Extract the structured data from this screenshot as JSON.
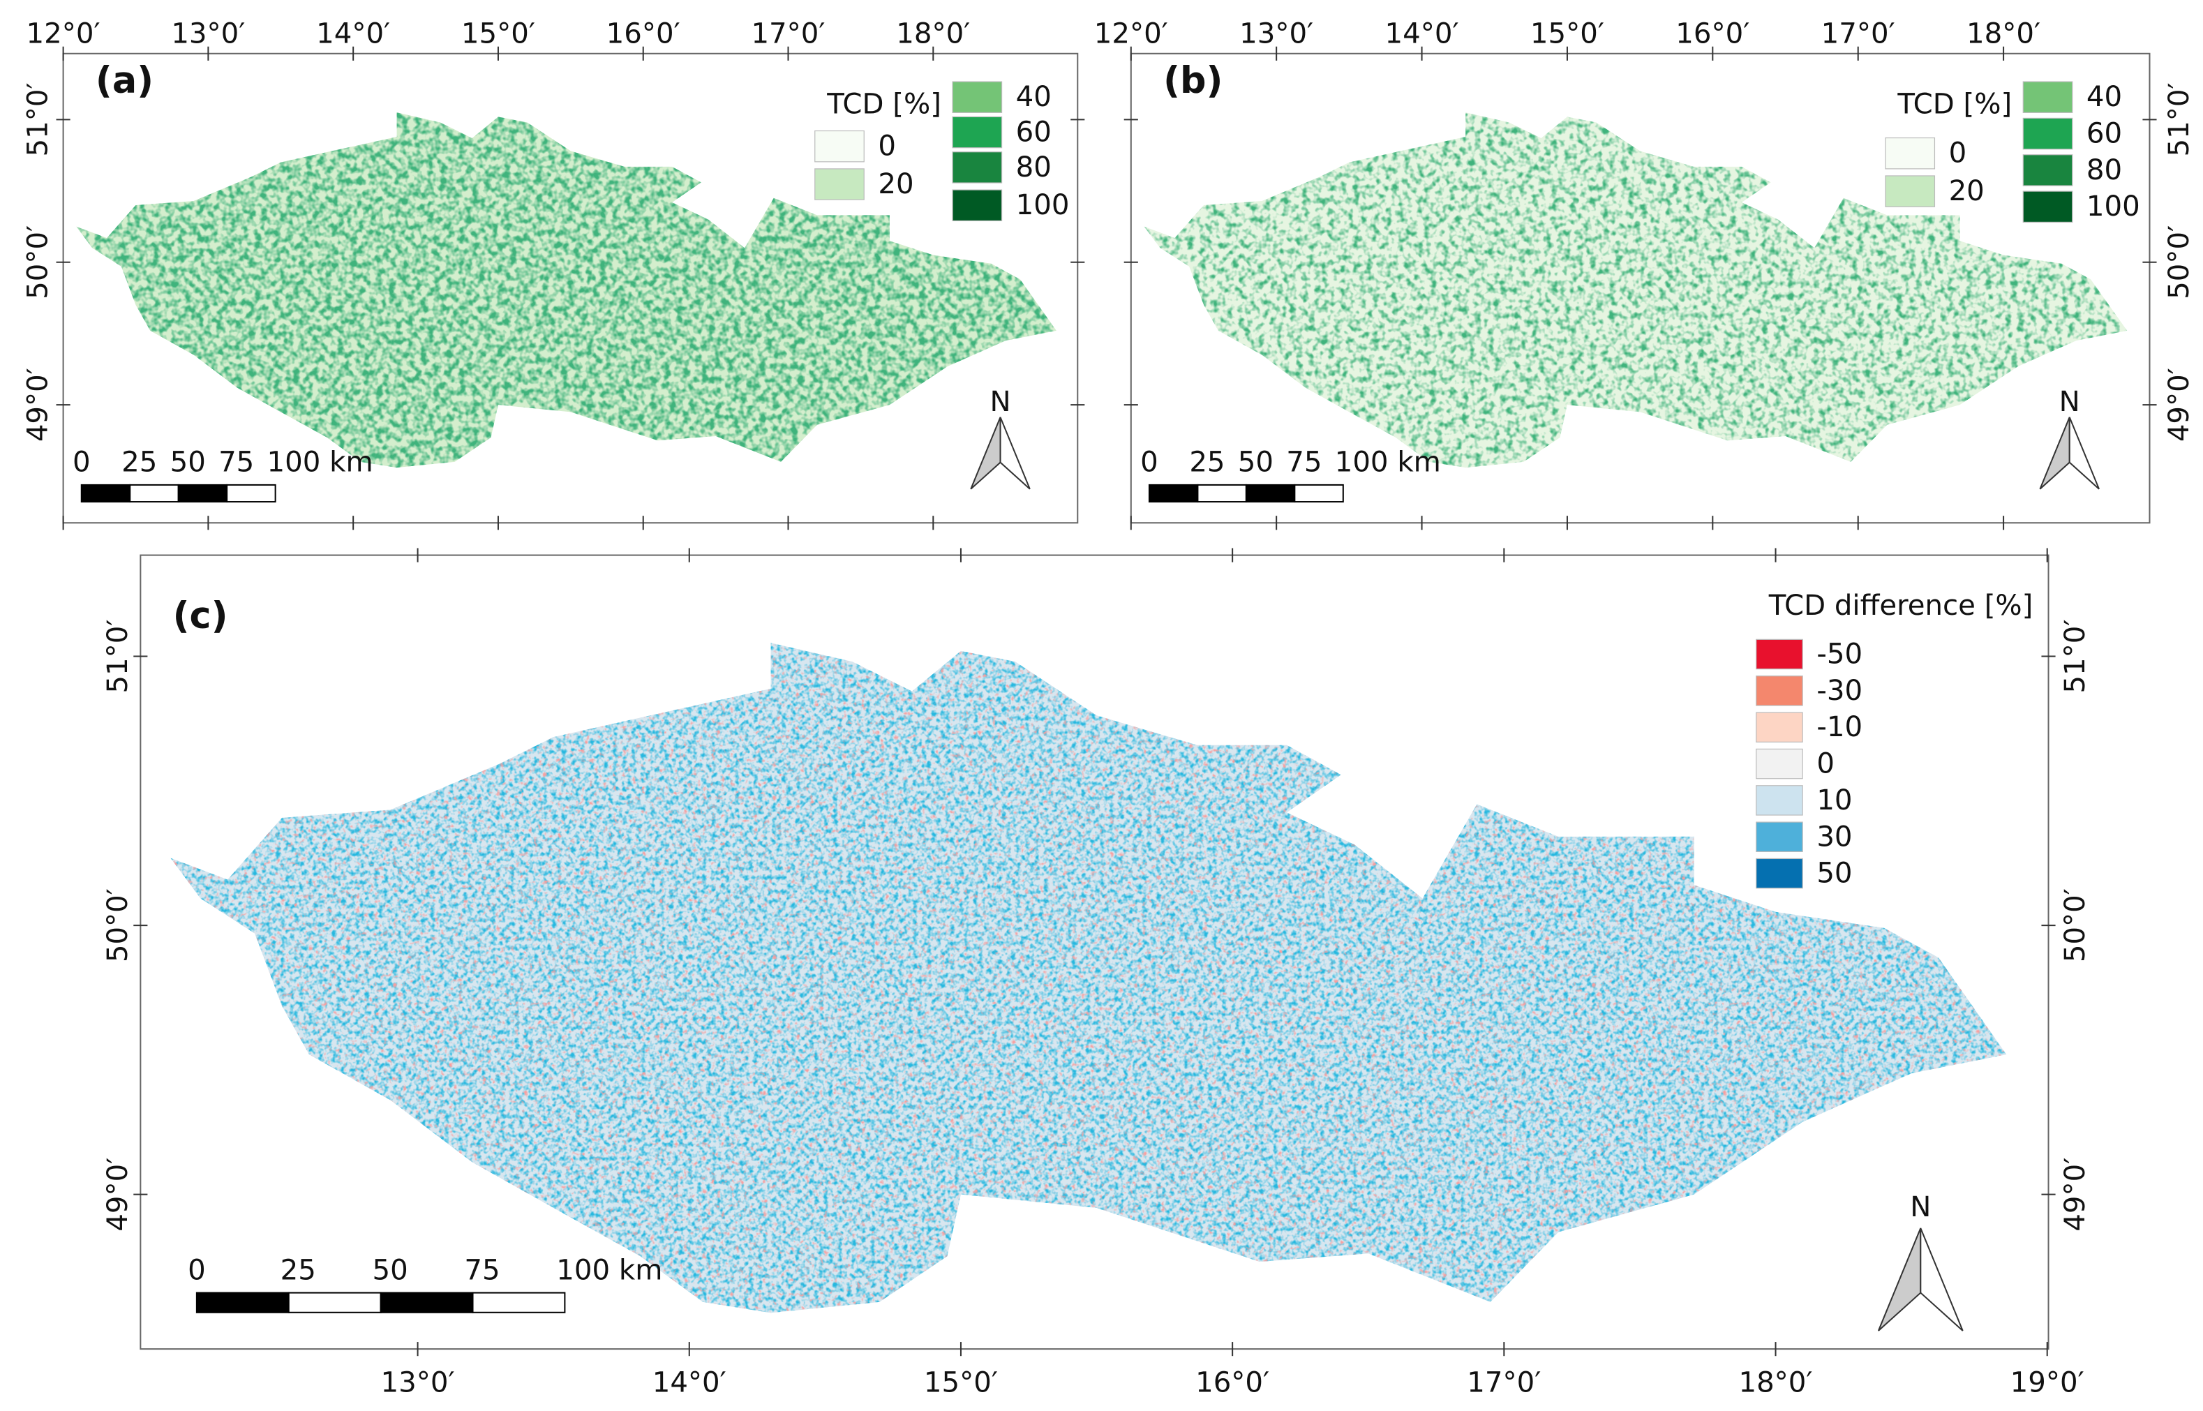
{
  "panels": [
    {
      "label": "(a)",
      "legend_title": "TCD [%]",
      "legend": [
        {
          "label": "0",
          "color": "#f7fcf5"
        },
        {
          "label": "20",
          "color": "#c7e9c0"
        },
        {
          "label": "40",
          "color": "#74c476"
        },
        {
          "label": "60",
          "color": "#1ea552"
        },
        {
          "label": "80",
          "color": "#19853f"
        },
        {
          "label": "100",
          "color": "#005a24"
        }
      ],
      "lon_labels": [
        "12°0′",
        "13°0′",
        "14°0′",
        "15°0′",
        "16°0′",
        "17°0′",
        "18°0′"
      ],
      "lat_labels": [
        "51°0′",
        "50°0′",
        "49°0′"
      ],
      "scale_labels": [
        "0",
        "25",
        "50",
        "75",
        "100 km"
      ],
      "north": "N"
    },
    {
      "label": "(b)",
      "legend_title": "TCD [%]",
      "legend": [
        {
          "label": "0",
          "color": "#f7fcf5"
        },
        {
          "label": "20",
          "color": "#c7e9c0"
        },
        {
          "label": "40",
          "color": "#74c476"
        },
        {
          "label": "60",
          "color": "#1ea552"
        },
        {
          "label": "80",
          "color": "#19853f"
        },
        {
          "label": "100",
          "color": "#005a24"
        }
      ],
      "lon_labels": [
        "12°0′",
        "13°0′",
        "14°0′",
        "15°0′",
        "16°0′",
        "17°0′",
        "18°0′"
      ],
      "lat_labels": [
        "51°0′",
        "50°0′",
        "49°0′"
      ],
      "scale_labels": [
        "0",
        "25",
        "50",
        "75",
        "100 km"
      ],
      "north": "N"
    },
    {
      "label": "(c)",
      "legend_title": "TCD difference [%]",
      "legend": [
        {
          "label": "-50",
          "color": "#e8112d"
        },
        {
          "label": "-30",
          "color": "#f4876d"
        },
        {
          "label": "-10",
          "color": "#fdd5c4"
        },
        {
          "label": "0",
          "color": "#f2f2f2"
        },
        {
          "label": "10",
          "color": "#cde3ef"
        },
        {
          "label": "30",
          "color": "#4eb0da"
        },
        {
          "label": "50",
          "color": "#0570b0"
        }
      ],
      "lon_labels": [
        "13°0′",
        "14°0′",
        "15°0′",
        "16°0′",
        "17°0′",
        "18°0′",
        "19°0′"
      ],
      "lat_labels": [
        "51°0′",
        "50°0′",
        "49°0′"
      ],
      "scale_labels": [
        "0",
        "25",
        "50",
        "75",
        "100 km"
      ],
      "north": "N"
    }
  ]
}
